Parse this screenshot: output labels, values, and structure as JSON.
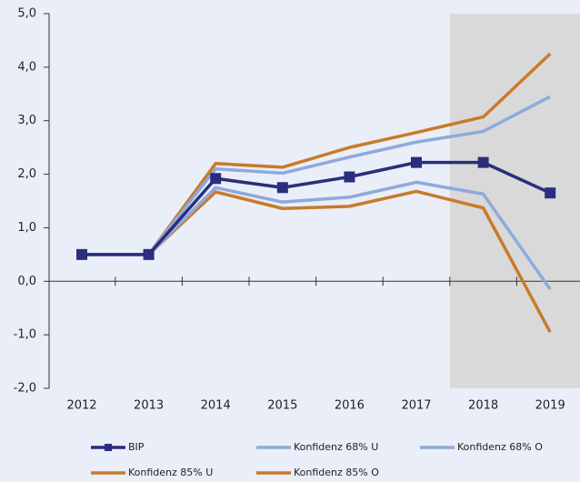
{
  "chart_data": {
    "type": "line",
    "categories": [
      "2012",
      "2013",
      "2014",
      "2015",
      "2016",
      "2017",
      "2018",
      "2019"
    ],
    "series": [
      {
        "name": "BIP",
        "color": "#2b2d7e",
        "marker": "square",
        "values": [
          0.5,
          0.5,
          1.92,
          1.75,
          1.95,
          2.22,
          2.22,
          1.65
        ]
      },
      {
        "name": "Konfidenz 68% U",
        "color": "#8eaadb",
        "values": [
          0.5,
          0.5,
          1.75,
          1.48,
          1.57,
          1.85,
          1.63,
          -0.15
        ]
      },
      {
        "name": "Konfidenz 68% O",
        "color": "#8eaadb",
        "values": [
          0.5,
          0.5,
          2.1,
          2.02,
          2.32,
          2.6,
          2.8,
          3.45
        ]
      },
      {
        "name": "Konfidenz 85% U",
        "color": "#c97a2a",
        "values": [
          0.5,
          0.5,
          1.67,
          1.36,
          1.4,
          1.68,
          1.37,
          -0.95
        ]
      },
      {
        "name": "Konfidenz 85% O",
        "color": "#c97a2a",
        "values": [
          0.5,
          0.5,
          2.2,
          2.13,
          2.5,
          2.78,
          3.07,
          4.25
        ]
      }
    ],
    "ylim": [
      -2,
      5
    ],
    "yticks": [
      {
        "value": -2,
        "label": "-2,0"
      },
      {
        "value": -1,
        "label": "-1,0"
      },
      {
        "value": 0,
        "label": "0,0"
      },
      {
        "value": 1,
        "label": "1,0"
      },
      {
        "value": 2,
        "label": "2,0"
      },
      {
        "value": 3,
        "label": "3,0"
      },
      {
        "value": 4,
        "label": "4,0"
      },
      {
        "value": 5,
        "label": "5,0"
      }
    ],
    "grid": false,
    "legend": "bottom"
  }
}
